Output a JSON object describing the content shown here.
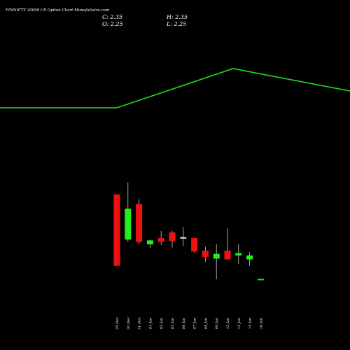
{
  "header": {
    "title": "FINNIFTY 20000  CE Option  Chart MunafaSutra.com",
    "close": "C: 2.35",
    "high": "H: 2.35",
    "open": "O: 2.25",
    "low": "L: 2.25"
  },
  "colors": {
    "background": "#000000",
    "up": "#22ee22",
    "down": "#ee1111",
    "neutral": "#dddddd",
    "line": "#22dd22",
    "wick": "#cccccc",
    "text": "#ffffff"
  },
  "chart_data": {
    "type": "candlestick",
    "categories": [
      "29 Dec",
      "30 Dec",
      "31 Dec",
      "01 Jan",
      "02 Jan",
      "05 Jan",
      "06 Jan",
      "07 Jan",
      "08 Jan",
      "09 Jan",
      "12 Jan",
      "13 Jan",
      "14 Jan",
      "16 Jan"
    ],
    "candles": [
      {
        "open": 13.0,
        "high": 13.0,
        "low": 4.0,
        "close": 4.0,
        "dir": "down"
      },
      {
        "open": 7.3,
        "high": 14.5,
        "low": 7.0,
        "close": 11.2,
        "dir": "up"
      },
      {
        "open": 11.8,
        "high": 12.4,
        "low": 6.7,
        "close": 7.0,
        "dir": "down"
      },
      {
        "open": 6.7,
        "high": 7.3,
        "low": 6.2,
        "close": 7.2,
        "dir": "up"
      },
      {
        "open": 7.5,
        "high": 8.4,
        "low": 6.6,
        "close": 7.0,
        "dir": "down"
      },
      {
        "open": 8.2,
        "high": 8.4,
        "low": 6.3,
        "close": 7.1,
        "dir": "down"
      },
      {
        "open": 7.5,
        "high": 8.9,
        "low": 6.5,
        "close": 7.6,
        "dir": "neutral"
      },
      {
        "open": 7.5,
        "high": 7.5,
        "low": 5.6,
        "close": 5.8,
        "dir": "down"
      },
      {
        "open": 5.9,
        "high": 6.4,
        "low": 4.5,
        "close": 5.1,
        "dir": "down"
      },
      {
        "open": 4.9,
        "high": 6.7,
        "low": 2.3,
        "close": 5.5,
        "dir": "up"
      },
      {
        "open": 5.9,
        "high": 8.7,
        "low": 4.8,
        "close": 4.8,
        "dir": "down"
      },
      {
        "open": 5.3,
        "high": 6.7,
        "low": 4.2,
        "close": 5.6,
        "dir": "up"
      },
      {
        "open": 4.8,
        "high": 5.7,
        "low": 4.0,
        "close": 5.3,
        "dir": "up"
      },
      {
        "open": 2.25,
        "high": 2.35,
        "low": 2.25,
        "close": 2.35,
        "dir": "up"
      }
    ],
    "line": {
      "values": [
        20000,
        20000,
        20000,
        20000,
        20000,
        20000,
        20000,
        20000,
        20000,
        20000,
        20000,
        20000,
        20000,
        20000
      ],
      "note_shape": "flat, then rising to a peak, then gently falling"
    },
    "ylim": [
      0,
      15
    ]
  }
}
